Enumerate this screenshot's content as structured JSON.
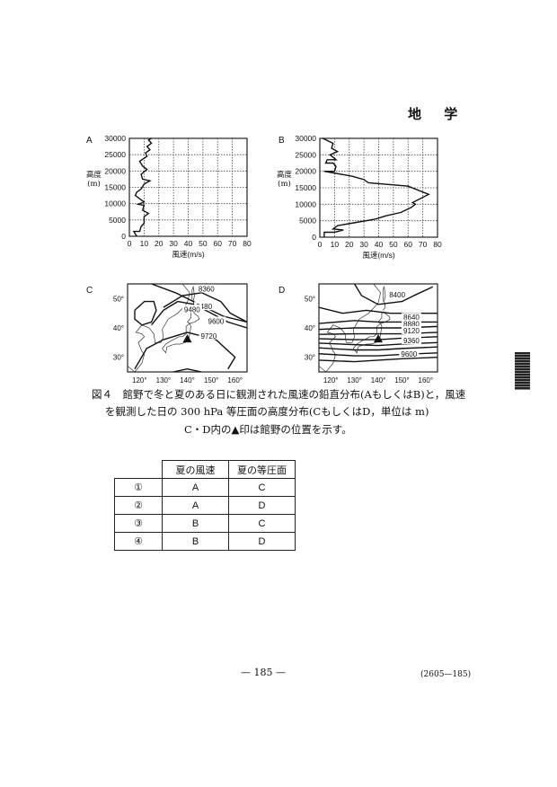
{
  "header": {
    "subject": "地 学"
  },
  "figure": {
    "caption_line1": "図４　館野で冬と夏のある日に観測された風速の鉛直分布(AもしくはB)と，風速",
    "caption_line2": "を観測した日の 300 hPa 等圧面の高度分布(CもしくはD，単位は m)",
    "note": "C・D内の▲印は館野の位置を示す。"
  },
  "chart_data": [
    {
      "panel": "A",
      "type": "line",
      "xlabel": "風速(m/s)",
      "ylabel": "高度(m)",
      "xlim": [
        0,
        80
      ],
      "ylim": [
        0,
        30000
      ],
      "xticks": [
        "0",
        "10",
        "20",
        "30",
        "40",
        "50",
        "60",
        "70",
        "80"
      ],
      "yticks": [
        "0",
        "5000",
        "10000",
        "15000",
        "20000",
        "25000",
        "30000"
      ],
      "grid": true,
      "x": [
        5,
        3,
        7,
        8,
        10,
        10,
        13,
        9,
        10,
        6,
        10,
        7,
        4,
        5,
        8,
        10,
        14,
        9,
        8,
        12,
        9,
        7,
        12,
        11,
        14,
        12,
        15,
        13,
        15
      ],
      "y": [
        0,
        1500,
        1500,
        3000,
        4000,
        6000,
        7000,
        8000,
        9500,
        9800,
        10500,
        11500,
        12500,
        13500,
        14500,
        16000,
        17000,
        17500,
        19000,
        20500,
        21500,
        23000,
        24500,
        25500,
        26500,
        27500,
        28500,
        29500,
        30000
      ]
    },
    {
      "panel": "B",
      "type": "line",
      "xlabel": "風速(m/s)",
      "ylabel": "高度(m)",
      "xlim": [
        0,
        80
      ],
      "ylim": [
        0,
        30000
      ],
      "xticks": [
        "0",
        "10",
        "20",
        "30",
        "40",
        "50",
        "60",
        "70",
        "80"
      ],
      "yticks": [
        "0",
        "5000",
        "10000",
        "15000",
        "20000",
        "25000",
        "30000"
      ],
      "grid": true,
      "x": [
        3,
        3,
        10,
        16,
        9,
        12,
        25,
        38,
        45,
        55,
        62,
        65,
        63,
        74,
        60,
        33,
        30,
        22,
        3,
        10,
        11,
        9,
        4,
        5,
        11,
        7,
        12,
        8,
        9,
        2
      ],
      "y": [
        0,
        1500,
        1500,
        2200,
        2500,
        3500,
        4500,
        5500,
        6500,
        7500,
        9000,
        10000,
        10500,
        13000,
        15500,
        16500,
        17500,
        18500,
        20000,
        20000,
        21500,
        22500,
        22500,
        23500,
        23500,
        25000,
        26000,
        27000,
        28500,
        30000
      ]
    }
  ],
  "maps": [
    {
      "panel": "C",
      "lat_ticks": [
        "50°",
        "40°",
        "30°"
      ],
      "lon_ticks": [
        "120°",
        "130°",
        "140°",
        "150°",
        "160°"
      ],
      "contour_labels": [
        "8360",
        "9480",
        "9480",
        "9600",
        "9720"
      ]
    },
    {
      "panel": "D",
      "lat_ticks": [
        "50°",
        "40°",
        "30°"
      ],
      "lon_ticks": [
        "120°",
        "130°",
        "140°",
        "150°",
        "160°"
      ],
      "contour_labels": [
        "8400",
        "8640",
        "8880",
        "9120",
        "9360",
        "9600"
      ]
    }
  ],
  "table": {
    "headers": [
      "夏の風速",
      "夏の等圧面"
    ],
    "rows": [
      {
        "num": "①",
        "wind": "A",
        "surface": "C"
      },
      {
        "num": "②",
        "wind": "A",
        "surface": "D"
      },
      {
        "num": "③",
        "wind": "B",
        "surface": "C"
      },
      {
        "num": "④",
        "wind": "B",
        "surface": "D"
      }
    ]
  },
  "footer": {
    "page": "— 185 —",
    "code": "(2605—185)"
  }
}
